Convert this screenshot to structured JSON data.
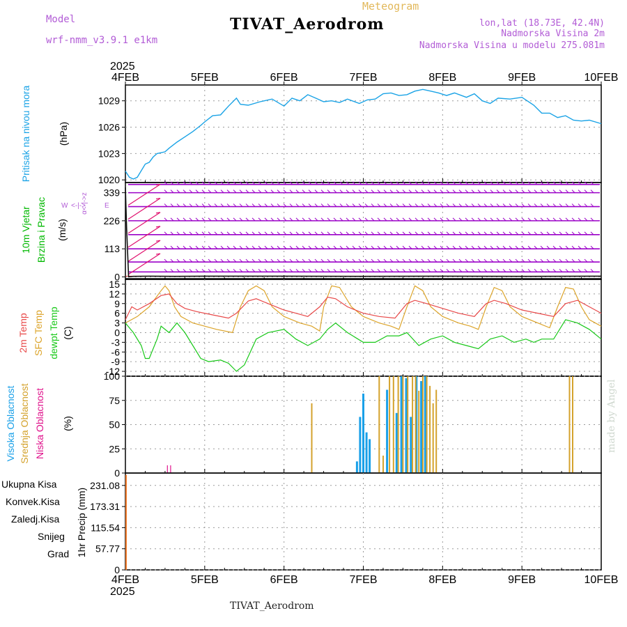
{
  "header": {
    "title": "TIVAT_Aerodrom",
    "meteogram": "Meteogram",
    "model_label": "Model",
    "model_name": "wrf-nmm_v3.9.1 e1km",
    "lonlat": "lon,lat (18.73E, 42.4N)",
    "altitude": "Nadmorska Visina 2m",
    "altitude_model": "Nadmorska Visina u modelu 275.081m"
  },
  "footer": {
    "station": "TIVAT_Aerodrom",
    "credit": "made by Angel"
  },
  "time_axis": {
    "year": "2025",
    "days": [
      "4FEB",
      "5FEB",
      "6FEB",
      "7FEB",
      "8FEB",
      "9FEB",
      "10FEB"
    ]
  },
  "colors": {
    "pressure": "#1aa3e6",
    "wind": "#00b800",
    "wind_barb": "#9b00c8",
    "wind_arrow": "#e0106e",
    "temp2m": "#e84848",
    "sfc_temp": "#dca42a",
    "dewpt": "#18c818",
    "high_cloud": "#19a0e8",
    "mid_cloud": "#d4a22c",
    "low_cloud": "#e0138c",
    "total_precip": "#18c818",
    "conv_precip": "#e83838",
    "frozen_precip": "#f07a2a",
    "snow": "#3a3ae0",
    "hail": "#18c8b4"
  },
  "panels": {
    "pressure": {
      "label": "Pritisak na nivou mora",
      "unit": "(hPa)",
      "ticks": [
        "1020",
        "1023",
        "1026",
        "1029"
      ]
    },
    "wind": {
      "label1": "10m Vjetar",
      "label2": "Brzina i Pravac",
      "unit": "(m/s)",
      "ticks": [
        "0",
        "113",
        "226",
        "339"
      ],
      "compass_n": "N",
      "compass_w": "W",
      "compass_e": "E",
      "compass_arrow_h": "<-|->",
      "compass_arrow_v": "α<-|->z"
    },
    "temperature": {
      "label1": "2m Temp",
      "label2": "SFC Temp",
      "label3": "dewpt Temp",
      "unit": "(C)",
      "ticks": [
        "-12",
        "-9",
        "-6",
        "-3",
        "0",
        "3",
        "6",
        "9",
        "12",
        "15"
      ]
    },
    "cloud": {
      "label1": "Visoka Oblacnost",
      "label2": "Srednja Oblacnost",
      "label3": "Niska Oblacnost",
      "unit": "(%)",
      "ticks": [
        "0",
        "25",
        "50",
        "75",
        "100"
      ]
    },
    "precip": {
      "unit": "1hr Precip (mm)",
      "ticks": [
        "0",
        "57.77",
        "115.54",
        "173.31",
        "231.08"
      ],
      "legend": [
        "Ukupna Kisa",
        "Konvek.Kisa",
        "Zaledj.Kisa",
        "Snijeg",
        "Grad"
      ]
    }
  },
  "chart_data": [
    {
      "type": "line",
      "title": "Pritisak na nivou mora",
      "ylabel": "(hPa)",
      "xlim": [
        0,
        6
      ],
      "ylim": [
        1019.7,
        1030.8
      ],
      "series": [
        {
          "name": "Pritisak na nivou mora",
          "x": [
            0,
            0.05,
            0.1,
            0.15,
            0.25,
            0.3,
            0.35,
            0.4,
            0.5,
            0.55,
            0.65,
            0.75,
            0.85,
            0.95,
            1.0,
            1.1,
            1.2,
            1.3,
            1.4,
            1.45,
            1.55,
            1.7,
            1.85,
            2.0,
            2.1,
            2.2,
            2.3,
            2.4,
            2.5,
            2.6,
            2.7,
            2.8,
            2.95,
            3.05,
            3.15,
            3.25,
            3.35,
            3.45,
            3.55,
            3.65,
            3.75,
            3.85,
            3.95,
            4.05,
            4.15,
            4.3,
            4.4,
            4.5,
            4.6,
            4.7,
            4.85,
            5.0,
            5.15,
            5.25,
            5.35,
            5.45,
            5.55,
            5.65,
            5.75,
            5.85,
            6.0
          ],
          "y": [
            1021.0,
            1020.3,
            1020.1,
            1020.3,
            1021.8,
            1022.0,
            1022.6,
            1023.0,
            1023.2,
            1023.6,
            1024.3,
            1024.9,
            1025.5,
            1026.2,
            1026.6,
            1027.3,
            1027.4,
            1028.4,
            1029.3,
            1028.6,
            1028.5,
            1028.9,
            1029.2,
            1028.4,
            1029.3,
            1029.0,
            1029.7,
            1029.3,
            1028.9,
            1029.0,
            1028.8,
            1029.2,
            1028.7,
            1029.1,
            1029.2,
            1029.8,
            1029.9,
            1029.6,
            1029.7,
            1030.1,
            1030.3,
            1030.1,
            1029.9,
            1029.6,
            1029.9,
            1029.4,
            1029.8,
            1029.0,
            1028.7,
            1029.3,
            1029.2,
            1029.4,
            1028.5,
            1027.6,
            1027.6,
            1027.1,
            1027.3,
            1026.8,
            1026.7,
            1026.8,
            1026.4
          ]
        }
      ]
    },
    {
      "type": "line",
      "title": "10m Vjetar Brzina i Pravac",
      "ylabel": "(m/s)",
      "xlim": [
        0,
        6
      ],
      "ylim": [
        -10,
        380
      ],
      "series": [
        {
          "name": "10m Vjetar",
          "x": [
            0,
            0.015,
            0.04,
            0.1,
            0.3,
            0.6,
            1,
            2,
            3,
            4,
            5,
            6
          ],
          "y": [
            360,
            200,
            0,
            2,
            3,
            2,
            3,
            3,
            2,
            3,
            2,
            3
          ]
        }
      ]
    },
    {
      "type": "line",
      "title": "Temperature",
      "ylabel": "(C)",
      "xlim": [
        0,
        6
      ],
      "ylim": [
        -13.5,
        16.5
      ],
      "series": [
        {
          "name": "2m Temp",
          "x": [
            0,
            0.08,
            0.15,
            0.3,
            0.45,
            0.55,
            0.65,
            0.75,
            0.9,
            1.1,
            1.3,
            1.4,
            1.55,
            1.65,
            1.8,
            2.0,
            2.15,
            2.3,
            2.45,
            2.55,
            2.65,
            2.8,
            3.0,
            3.2,
            3.4,
            3.55,
            3.65,
            3.8,
            4.0,
            4.2,
            4.4,
            4.55,
            4.65,
            4.8,
            5.0,
            5.2,
            5.4,
            5.55,
            5.7,
            5.85,
            6.0
          ],
          "y": [
            4,
            8,
            7,
            9,
            11.5,
            12,
            9,
            7.5,
            6.5,
            5.5,
            4.5,
            6,
            9.8,
            10.5,
            9,
            7,
            6,
            5,
            8,
            11,
            10.5,
            8,
            6,
            5,
            4.5,
            9,
            10,
            9,
            7.5,
            6,
            5,
            9,
            10,
            9,
            7,
            6,
            5,
            9,
            10,
            8,
            6
          ]
        },
        {
          "name": "SFC Temp",
          "x": [
            0,
            0.15,
            0.3,
            0.45,
            0.5,
            0.55,
            0.62,
            0.7,
            0.85,
            1.0,
            1.15,
            1.35,
            1.45,
            1.55,
            1.65,
            1.75,
            1.85,
            2.0,
            2.2,
            2.35,
            2.45,
            2.5,
            2.6,
            2.7,
            2.85,
            3.0,
            3.2,
            3.35,
            3.45,
            3.55,
            3.65,
            3.75,
            3.85,
            4.0,
            4.2,
            4.35,
            4.45,
            4.55,
            4.65,
            4.75,
            4.85,
            5.0,
            5.2,
            5.35,
            5.45,
            5.55,
            5.65,
            5.75,
            5.85,
            6.0
          ],
          "y": [
            3,
            5,
            8,
            13,
            14.5,
            13,
            8,
            5,
            3,
            2,
            1,
            0,
            8,
            13,
            14.5,
            13,
            8,
            5,
            3,
            2,
            0.5,
            8,
            14.5,
            14,
            8,
            5,
            3,
            2,
            1,
            8,
            14.5,
            13,
            8,
            5,
            3,
            2,
            1,
            8,
            14,
            13,
            8,
            5,
            3,
            1.5,
            8,
            14,
            13.5,
            8,
            4,
            2
          ]
        },
        {
          "name": "dewpt Temp",
          "x": [
            0,
            0.1,
            0.2,
            0.25,
            0.3,
            0.4,
            0.45,
            0.55,
            0.65,
            0.75,
            0.85,
            0.95,
            1.05,
            1.2,
            1.3,
            1.4,
            1.5,
            1.65,
            1.8,
            2.0,
            2.15,
            2.3,
            2.45,
            2.55,
            2.65,
            2.8,
            3.0,
            3.15,
            3.3,
            3.45,
            3.55,
            3.7,
            3.85,
            4.0,
            4.15,
            4.3,
            4.45,
            4.6,
            4.75,
            4.9,
            5.05,
            5.15,
            5.25,
            5.4,
            5.55,
            5.7,
            5.85,
            6.0
          ],
          "y": [
            3,
            0,
            -4,
            -8,
            -8,
            -2,
            2,
            0,
            3,
            0,
            -4,
            -8,
            -9,
            -8.5,
            -9.5,
            -12,
            -10,
            -2,
            0,
            1,
            -2,
            -4,
            -2,
            1,
            3,
            0,
            -3,
            -3,
            -1,
            -1,
            0,
            -4,
            -2,
            -1,
            -3,
            -4,
            -5,
            -2,
            -1,
            -3,
            -2,
            -3,
            -2,
            -2,
            4,
            3,
            1,
            -2
          ]
        }
      ]
    },
    {
      "type": "bar",
      "title": "Oblacnost",
      "ylabel": "(%)",
      "xlim": [
        0,
        6
      ],
      "ylim": [
        0,
        100
      ],
      "series": [
        {
          "name": "Visoka Oblacnost",
          "x": [
            2.92,
            2.96,
            3.0,
            3.04,
            3.08,
            3.3,
            3.42,
            3.48,
            3.54,
            3.6,
            3.67,
            3.73,
            3.78
          ],
          "values": [
            12,
            58,
            82,
            42,
            35,
            86,
            62,
            100,
            98,
            58,
            100,
            95,
            100
          ]
        },
        {
          "name": "Srednja Oblacnost",
          "x": [
            2.35,
            3.2,
            3.25,
            3.33,
            3.38,
            3.44,
            3.5,
            3.56,
            3.62,
            3.66,
            3.7,
            3.75,
            3.8,
            3.84,
            3.88,
            3.92,
            5.6,
            5.64
          ],
          "values": [
            72,
            100,
            18,
            100,
            100,
            100,
            100,
            100,
            100,
            100,
            85,
            100,
            100,
            90,
            72,
            86,
            100,
            100
          ]
        },
        {
          "name": "Niska Oblacnost",
          "x": [
            0.53,
            0.57
          ],
          "values": [
            8,
            8
          ]
        }
      ]
    },
    {
      "type": "bar",
      "title": "1hr Precip",
      "ylabel": "1hr Precip (mm)",
      "xlim": [
        0,
        6
      ],
      "ylim": [
        0,
        265
      ],
      "series": [
        {
          "name": "Ukupna Kisa",
          "x": [
            0
          ],
          "values": [
            260
          ]
        }
      ]
    }
  ]
}
